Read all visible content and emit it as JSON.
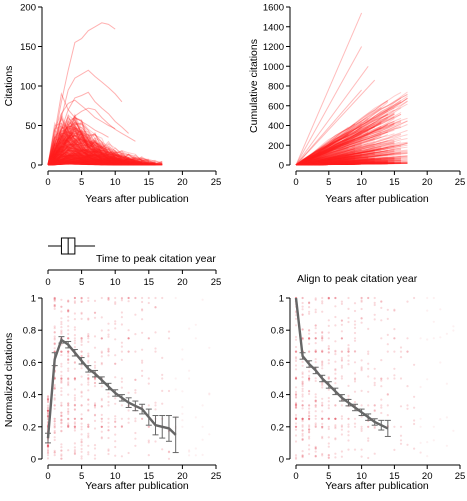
{
  "chart_data": [
    {
      "id": "citations",
      "type": "line",
      "title": "",
      "xlabel": "Years after publication",
      "ylabel": "Citations",
      "xlim": [
        0,
        25
      ],
      "ylim": [
        0,
        200
      ],
      "xticks": [
        0,
        5,
        10,
        15,
        20,
        25
      ],
      "yticks": [
        0,
        50,
        100,
        150,
        200
      ],
      "grid": false,
      "color": "#ff2020",
      "note": "",
      "series_highlight": [
        {
          "x": [
            0,
            1,
            2,
            3,
            4,
            5,
            6,
            7,
            8,
            9,
            10
          ],
          "y": [
            2,
            35,
            80,
            120,
            155,
            160,
            170,
            175,
            180,
            178,
            172
          ]
        },
        {
          "x": [
            0,
            1,
            2,
            3,
            4,
            5,
            6,
            7,
            8,
            9,
            10,
            11
          ],
          "y": [
            1,
            25,
            60,
            95,
            110,
            115,
            120,
            112,
            105,
            98,
            90,
            80
          ]
        },
        {
          "x": [
            0,
            1,
            2,
            3,
            4,
            5,
            6,
            7,
            8,
            9,
            10,
            11,
            12
          ],
          "y": [
            1,
            20,
            45,
            70,
            85,
            88,
            92,
            80,
            72,
            65,
            55,
            48,
            40
          ]
        },
        {
          "x": [
            0,
            1,
            2,
            3,
            4,
            5,
            6,
            7,
            8,
            9,
            10
          ],
          "y": [
            1,
            30,
            65,
            78,
            82,
            75,
            68,
            60,
            55,
            50,
            46
          ]
        },
        {
          "x": [
            0,
            1,
            2,
            3,
            4,
            5,
            6,
            7,
            8,
            9,
            10,
            11,
            12,
            13
          ],
          "y": [
            1,
            15,
            35,
            50,
            62,
            68,
            72,
            70,
            60,
            52,
            45,
            40,
            35,
            30
          ]
        },
        {
          "x": [
            0,
            1,
            2,
            3,
            4,
            5,
            6,
            7,
            8,
            9
          ],
          "y": [
            1,
            40,
            90,
            70,
            60,
            55,
            50,
            44,
            40,
            35
          ]
        }
      ]
    },
    {
      "id": "cumulative",
      "type": "line",
      "title": "",
      "xlabel": "Years after publication",
      "ylabel": "Cumulative citations",
      "xlim": [
        0,
        25
      ],
      "ylim": [
        0,
        1600
      ],
      "xticks": [
        0,
        5,
        10,
        15,
        20,
        25
      ],
      "yticks": [
        0,
        200,
        400,
        600,
        800,
        1000,
        1200,
        1400,
        1600
      ],
      "grid": false,
      "color": "#ff2020",
      "series_highlight": [
        {
          "x": [
            0,
            10
          ],
          "y": [
            0,
            1540
          ]
        },
        {
          "x": [
            0,
            10
          ],
          "y": [
            0,
            1200
          ]
        },
        {
          "x": [
            0,
            11
          ],
          "y": [
            0,
            1000
          ]
        },
        {
          "x": [
            0,
            12
          ],
          "y": [
            0,
            860
          ]
        },
        {
          "x": [
            0,
            10
          ],
          "y": [
            0,
            760
          ]
        },
        {
          "x": [
            0,
            14
          ],
          "y": [
            0,
            650
          ]
        },
        {
          "x": [
            0,
            13
          ],
          "y": [
            0,
            580
          ]
        },
        {
          "x": [
            0,
            15
          ],
          "y": [
            0,
            520
          ]
        }
      ]
    },
    {
      "id": "time-to-peak-boxplot",
      "type": "box",
      "title": "Time to peak citation year",
      "xlim": [
        0,
        25
      ],
      "xticks": [
        0,
        5,
        10,
        15,
        20,
        25
      ],
      "whisker_low": 0,
      "q1": 2,
      "median": 3,
      "q3": 4,
      "whisker_high": 7
    },
    {
      "id": "normalized",
      "type": "line",
      "title": "",
      "xlabel": "Years after publication",
      "ylabel": "Normalized citations",
      "xlim": [
        0,
        25
      ],
      "ylim": [
        0,
        1.0
      ],
      "xticks": [
        0,
        5,
        10,
        15,
        20,
        25
      ],
      "yticks": [
        0,
        0.2,
        0.4,
        0.6,
        0.8,
        1.0
      ],
      "grid": false,
      "line_color": "#666666",
      "scatter_color": "#e04050",
      "mean": {
        "x": [
          0,
          1,
          2,
          3,
          4,
          5,
          6,
          7,
          8,
          9,
          10,
          11,
          12,
          13,
          14,
          15,
          16,
          17,
          18,
          19
        ],
        "y": [
          0.13,
          0.62,
          0.74,
          0.71,
          0.66,
          0.61,
          0.56,
          0.53,
          0.49,
          0.45,
          0.41,
          0.38,
          0.35,
          0.33,
          0.31,
          0.26,
          0.21,
          0.2,
          0.19,
          0.15
        ],
        "err": [
          0.03,
          0.04,
          0.02,
          0.02,
          0.02,
          0.02,
          0.02,
          0.02,
          0.02,
          0.02,
          0.02,
          0.02,
          0.03,
          0.03,
          0.03,
          0.05,
          0.06,
          0.07,
          0.08,
          0.11
        ]
      }
    },
    {
      "id": "aligned",
      "type": "line",
      "title": "Align to peak citation year",
      "xlabel": "Years after publication",
      "ylabel": "",
      "xlim": [
        0,
        25
      ],
      "ylim": [
        0,
        1.0
      ],
      "xticks": [
        0,
        5,
        10,
        15,
        20,
        25
      ],
      "yticks": [
        0,
        0.2,
        0.4,
        0.6,
        0.8,
        1.0
      ],
      "grid": false,
      "line_color": "#666666",
      "scatter_color": "#e04050",
      "mean": {
        "x": [
          0,
          1,
          2,
          3,
          4,
          5,
          6,
          7,
          8,
          9,
          10,
          11,
          12,
          13,
          14
        ],
        "y": [
          1.0,
          0.64,
          0.59,
          0.55,
          0.5,
          0.46,
          0.42,
          0.38,
          0.35,
          0.32,
          0.29,
          0.26,
          0.23,
          0.21,
          0.19
        ],
        "err": [
          0.0,
          0.02,
          0.02,
          0.02,
          0.02,
          0.02,
          0.02,
          0.02,
          0.02,
          0.02,
          0.02,
          0.02,
          0.02,
          0.03,
          0.05
        ]
      }
    }
  ]
}
